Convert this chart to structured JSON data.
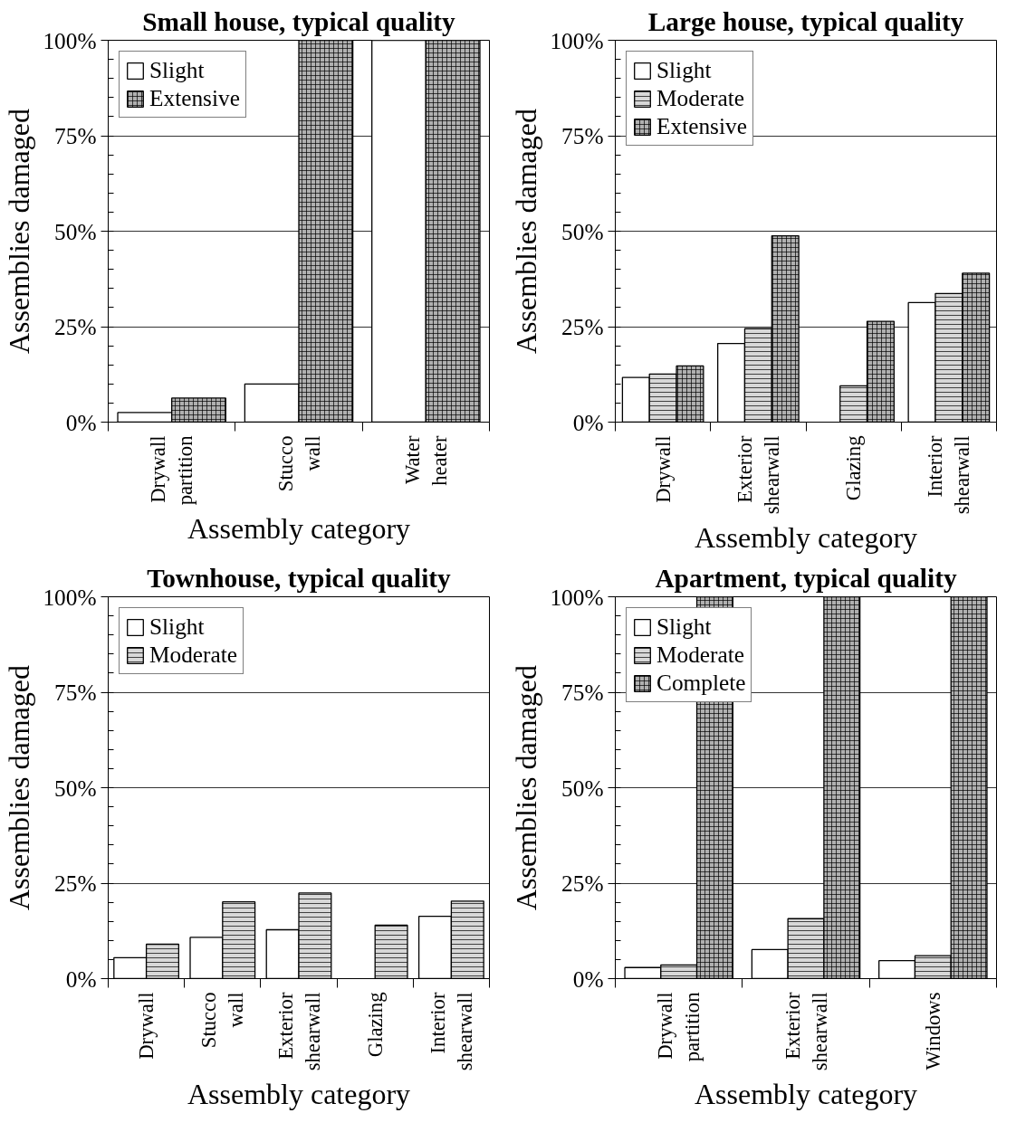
{
  "chart_data": [
    {
      "type": "bar",
      "title": "Small house, typical quality",
      "xlabel": "Assembly category",
      "ylabel": "Assemblies damaged",
      "categories": [
        "Drywall\npartition",
        "Stucco\nwall",
        "Water\nheater"
      ],
      "series": [
        {
          "name": "Slight",
          "color": "#ffffff",
          "values": [
            2.5,
            10,
            100
          ]
        },
        {
          "name": "Extensive",
          "color": "#b0b0b0",
          "values": [
            6.3,
            100,
            100
          ]
        }
      ],
      "ylim": [
        0,
        100
      ],
      "yticks": [
        {
          "value": 0,
          "label": "0%"
        },
        {
          "value": 25,
          "label": "25%"
        },
        {
          "value": 50,
          "label": "50%"
        },
        {
          "value": 75,
          "label": "75%"
        },
        {
          "value": 100,
          "label": "100%"
        }
      ],
      "grid": "y",
      "legend": "top left"
    },
    {
      "type": "bar",
      "title": "Large house, typical quality",
      "xlabel": "Assembly category",
      "ylabel": "Assemblies damaged",
      "categories": [
        "Drywall",
        "Exterior\nshearwall",
        "Glazing",
        "Interior\nshearwall"
      ],
      "series": [
        {
          "name": "Slight",
          "color": "#ffffff",
          "values": [
            11.7,
            20.6,
            null,
            31.3
          ]
        },
        {
          "name": "Moderate",
          "color": "#d8d8d8",
          "values": [
            12.6,
            24.5,
            9.5,
            33.7
          ]
        },
        {
          "name": "Extensive",
          "color": "#b0b0b0",
          "values": [
            14.7,
            48.8,
            26.4,
            39
          ]
        }
      ],
      "ylim": [
        0,
        100
      ],
      "yticks": [
        {
          "value": 0,
          "label": "0%"
        },
        {
          "value": 25,
          "label": "25%"
        },
        {
          "value": 50,
          "label": "50%"
        },
        {
          "value": 75,
          "label": "75%"
        },
        {
          "value": 100,
          "label": "100%"
        }
      ],
      "grid": "y",
      "legend": "top left"
    },
    {
      "type": "bar",
      "title": "Townhouse, typical quality",
      "xlabel": "Assembly category",
      "ylabel": "Assemblies damaged",
      "categories": [
        "Drywall",
        "Stucco\nwall",
        "Exterior\nshearwall",
        "Glazing",
        "Interior\nshearwall"
      ],
      "series": [
        {
          "name": "Slight",
          "color": "#ffffff",
          "values": [
            5.5,
            10.8,
            12.8,
            null,
            16.3
          ]
        },
        {
          "name": "Moderate",
          "color": "#d8d8d8",
          "values": [
            9.0,
            20.1,
            22.4,
            14,
            20.3
          ]
        }
      ],
      "ylim": [
        0,
        100
      ],
      "yticks": [
        {
          "value": 0,
          "label": "0%"
        },
        {
          "value": 25,
          "label": "25%"
        },
        {
          "value": 50,
          "label": "50%"
        },
        {
          "value": 75,
          "label": "75%"
        },
        {
          "value": 100,
          "label": "100%"
        }
      ],
      "grid": "y",
      "legend": "top left"
    },
    {
      "type": "bar",
      "title": "Apartment, typical quality",
      "xlabel": "Assembly category",
      "ylabel": "Assemblies damaged",
      "categories": [
        "Drywall\npartition",
        "Exterior\nshearwall",
        "Windows"
      ],
      "series": [
        {
          "name": "Slight",
          "color": "#ffffff",
          "values": [
            2.9,
            7.6,
            4.7
          ]
        },
        {
          "name": "Moderate",
          "color": "#d8d8d8",
          "values": [
            3.6,
            15.7,
            6.0
          ]
        },
        {
          "name": "Complete",
          "color": "#b0b0b0",
          "values": [
            100,
            100,
            100
          ]
        }
      ],
      "ylim": [
        0,
        100
      ],
      "yticks": [
        {
          "value": 0,
          "label": "0%"
        },
        {
          "value": 25,
          "label": "25%"
        },
        {
          "value": 50,
          "label": "50%"
        },
        {
          "value": 75,
          "label": "75%"
        },
        {
          "value": 100,
          "label": "100%"
        }
      ],
      "grid": "y",
      "legend": "top left"
    }
  ]
}
